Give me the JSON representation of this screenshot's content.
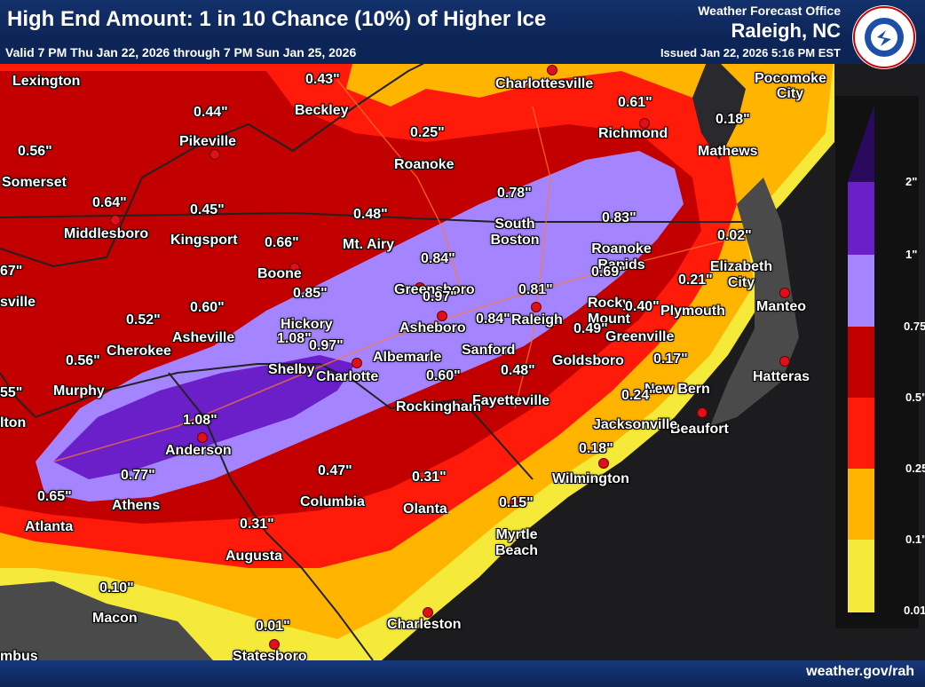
{
  "header": {
    "title": "High End Amount: 1 in 10 Chance (10%) of Higher Ice",
    "valid": "Valid 7 PM Thu Jan 22, 2026 through 7 PM Sun Jan 25, 2026",
    "office_line": "Weather Forecast Office",
    "office_name": "Raleigh, NC",
    "issued": "Issued Jan 22, 2026 5:16 PM EST",
    "logo_text": "NATIONAL WEATHER SERVICE"
  },
  "footer": {
    "site": "weather.gov/rah"
  },
  "legend": {
    "colors": [
      "#2a0a5e",
      "#6a1fc9",
      "#a484ff",
      "#c20000",
      "#ff1a0a",
      "#ffb400",
      "#f5ea3a"
    ],
    "labels": [
      "2\"",
      "1\"",
      "0.75\"",
      "0.5\"",
      "0.25\"",
      "0.1\"",
      "0.01\""
    ]
  },
  "cities": [
    "Lexington",
    "Beckley",
    "Charlottesville",
    "Pocomoke City",
    "Pikeville",
    "Richmond",
    "Mathews",
    "Somerset",
    "Roanoke",
    "Middlesboro",
    "Kingsport",
    "Mt. Airy",
    "South Boston",
    "Roanoke Rapids",
    "Elizabeth City",
    "Boone",
    "Greensboro",
    "sville",
    "Rocky Mount",
    "Plymouth",
    "Manteo",
    "Asheville",
    "Hickory",
    "Asheboro",
    "Raleigh",
    "Greenville",
    "Cherokee",
    "Shelby",
    "Charlotte",
    "Albemarle",
    "Sanford",
    "Goldsboro",
    "Murphy",
    "New Bern",
    "Hatteras",
    "lton",
    "Rockingham",
    "Fayetteville",
    "Beaufort",
    "Jacksonville",
    "Anderson",
    "Wilmington",
    "Athens",
    "Columbia",
    "Olanta",
    "Atlanta",
    "Myrtle Beach",
    "Augusta",
    "Macon",
    "Charleston",
    "Statesboro",
    "mbus"
  ],
  "values": [
    "0.43\"",
    "0.44\"",
    "0.25\"",
    "0.61\"",
    "0.18\"",
    "0.56\"",
    "0.64\"",
    "0.45\"",
    "0.48\"",
    "0.78\"",
    "0.83\"",
    "0.02\"",
    "67\"",
    "0.66\"",
    "0.84\"",
    "0.85\"",
    "0.97\"",
    "0.81\"",
    "0.69\"",
    "0.21\"",
    "0.60\"",
    "0.52\"",
    "0.40\"",
    "1.08\"",
    "0.84\"",
    "0.49\"",
    "0.56\"",
    "0.97\"",
    "0.17\"",
    "0.48\"",
    "55\"",
    "0.60\"",
    "0.24\"",
    "1.08\"",
    "0.18\"",
    "0.77\"",
    "0.47\"",
    "0.31\"",
    "0.65\"",
    "0.15\"",
    "0.31\"",
    "0.10\"",
    "0.01\""
  ]
}
